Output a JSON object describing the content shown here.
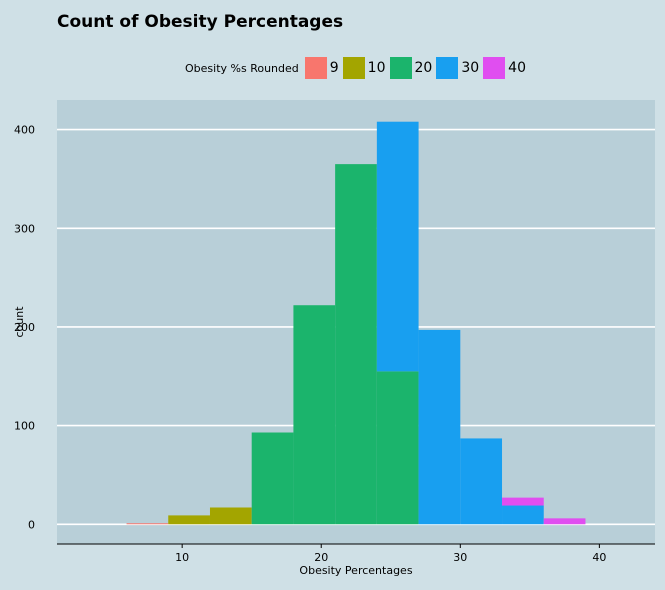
{
  "chart_data": {
    "type": "bar",
    "title": "Count of Obesity Percentages",
    "xlabel": "Obesity Percentages",
    "ylabel": "count",
    "xlim": [
      1,
      44
    ],
    "ylim": [
      -20,
      430
    ],
    "x_ticks": [
      10,
      20,
      30,
      40
    ],
    "y_ticks": [
      0,
      100,
      200,
      300,
      400
    ],
    "legend": {
      "title": "Obesity %s Rounded",
      "position": "top",
      "entries": [
        {
          "label": "9",
          "color": "#F8766D"
        },
        {
          "label": "10",
          "color": "#A3A500"
        },
        {
          "label": "20",
          "color": "#1BB46C"
        },
        {
          "label": "30",
          "color": "#189FF0"
        },
        {
          "label": "40",
          "color": "#E04EF0"
        }
      ]
    },
    "grid": true,
    "bars": [
      {
        "x0": 6.0,
        "x1": 9.0,
        "segments": [
          {
            "group": "9",
            "value": 1
          }
        ]
      },
      {
        "x0": 9.0,
        "x1": 12.0,
        "segments": [
          {
            "group": "10",
            "value": 9
          }
        ]
      },
      {
        "x0": 12.0,
        "x1": 15.0,
        "segments": [
          {
            "group": "10",
            "value": 17
          }
        ]
      },
      {
        "x0": 15.0,
        "x1": 18.0,
        "segments": [
          {
            "group": "20",
            "value": 93
          }
        ]
      },
      {
        "x0": 18.0,
        "x1": 21.0,
        "segments": [
          {
            "group": "20",
            "value": 222
          }
        ]
      },
      {
        "x0": 21.0,
        "x1": 24.0,
        "segments": [
          {
            "group": "20",
            "value": 365
          }
        ]
      },
      {
        "x0": 24.0,
        "x1": 27.0,
        "segments": [
          {
            "group": "20",
            "value": 155
          },
          {
            "group": "30",
            "value": 253
          }
        ]
      },
      {
        "x0": 27.0,
        "x1": 30.0,
        "segments": [
          {
            "group": "30",
            "value": 197
          }
        ]
      },
      {
        "x0": 30.0,
        "x1": 33.0,
        "segments": [
          {
            "group": "30",
            "value": 87
          }
        ]
      },
      {
        "x0": 33.0,
        "x1": 36.0,
        "segments": [
          {
            "group": "30",
            "value": 19
          },
          {
            "group": "40",
            "value": 8
          }
        ]
      },
      {
        "x0": 36.0,
        "x1": 39.0,
        "segments": [
          {
            "group": "40",
            "value": 6
          }
        ]
      }
    ]
  },
  "colors": {
    "background": "#cfe0e6",
    "panel": "#b8cfd8",
    "gridline": "#ffffff"
  }
}
